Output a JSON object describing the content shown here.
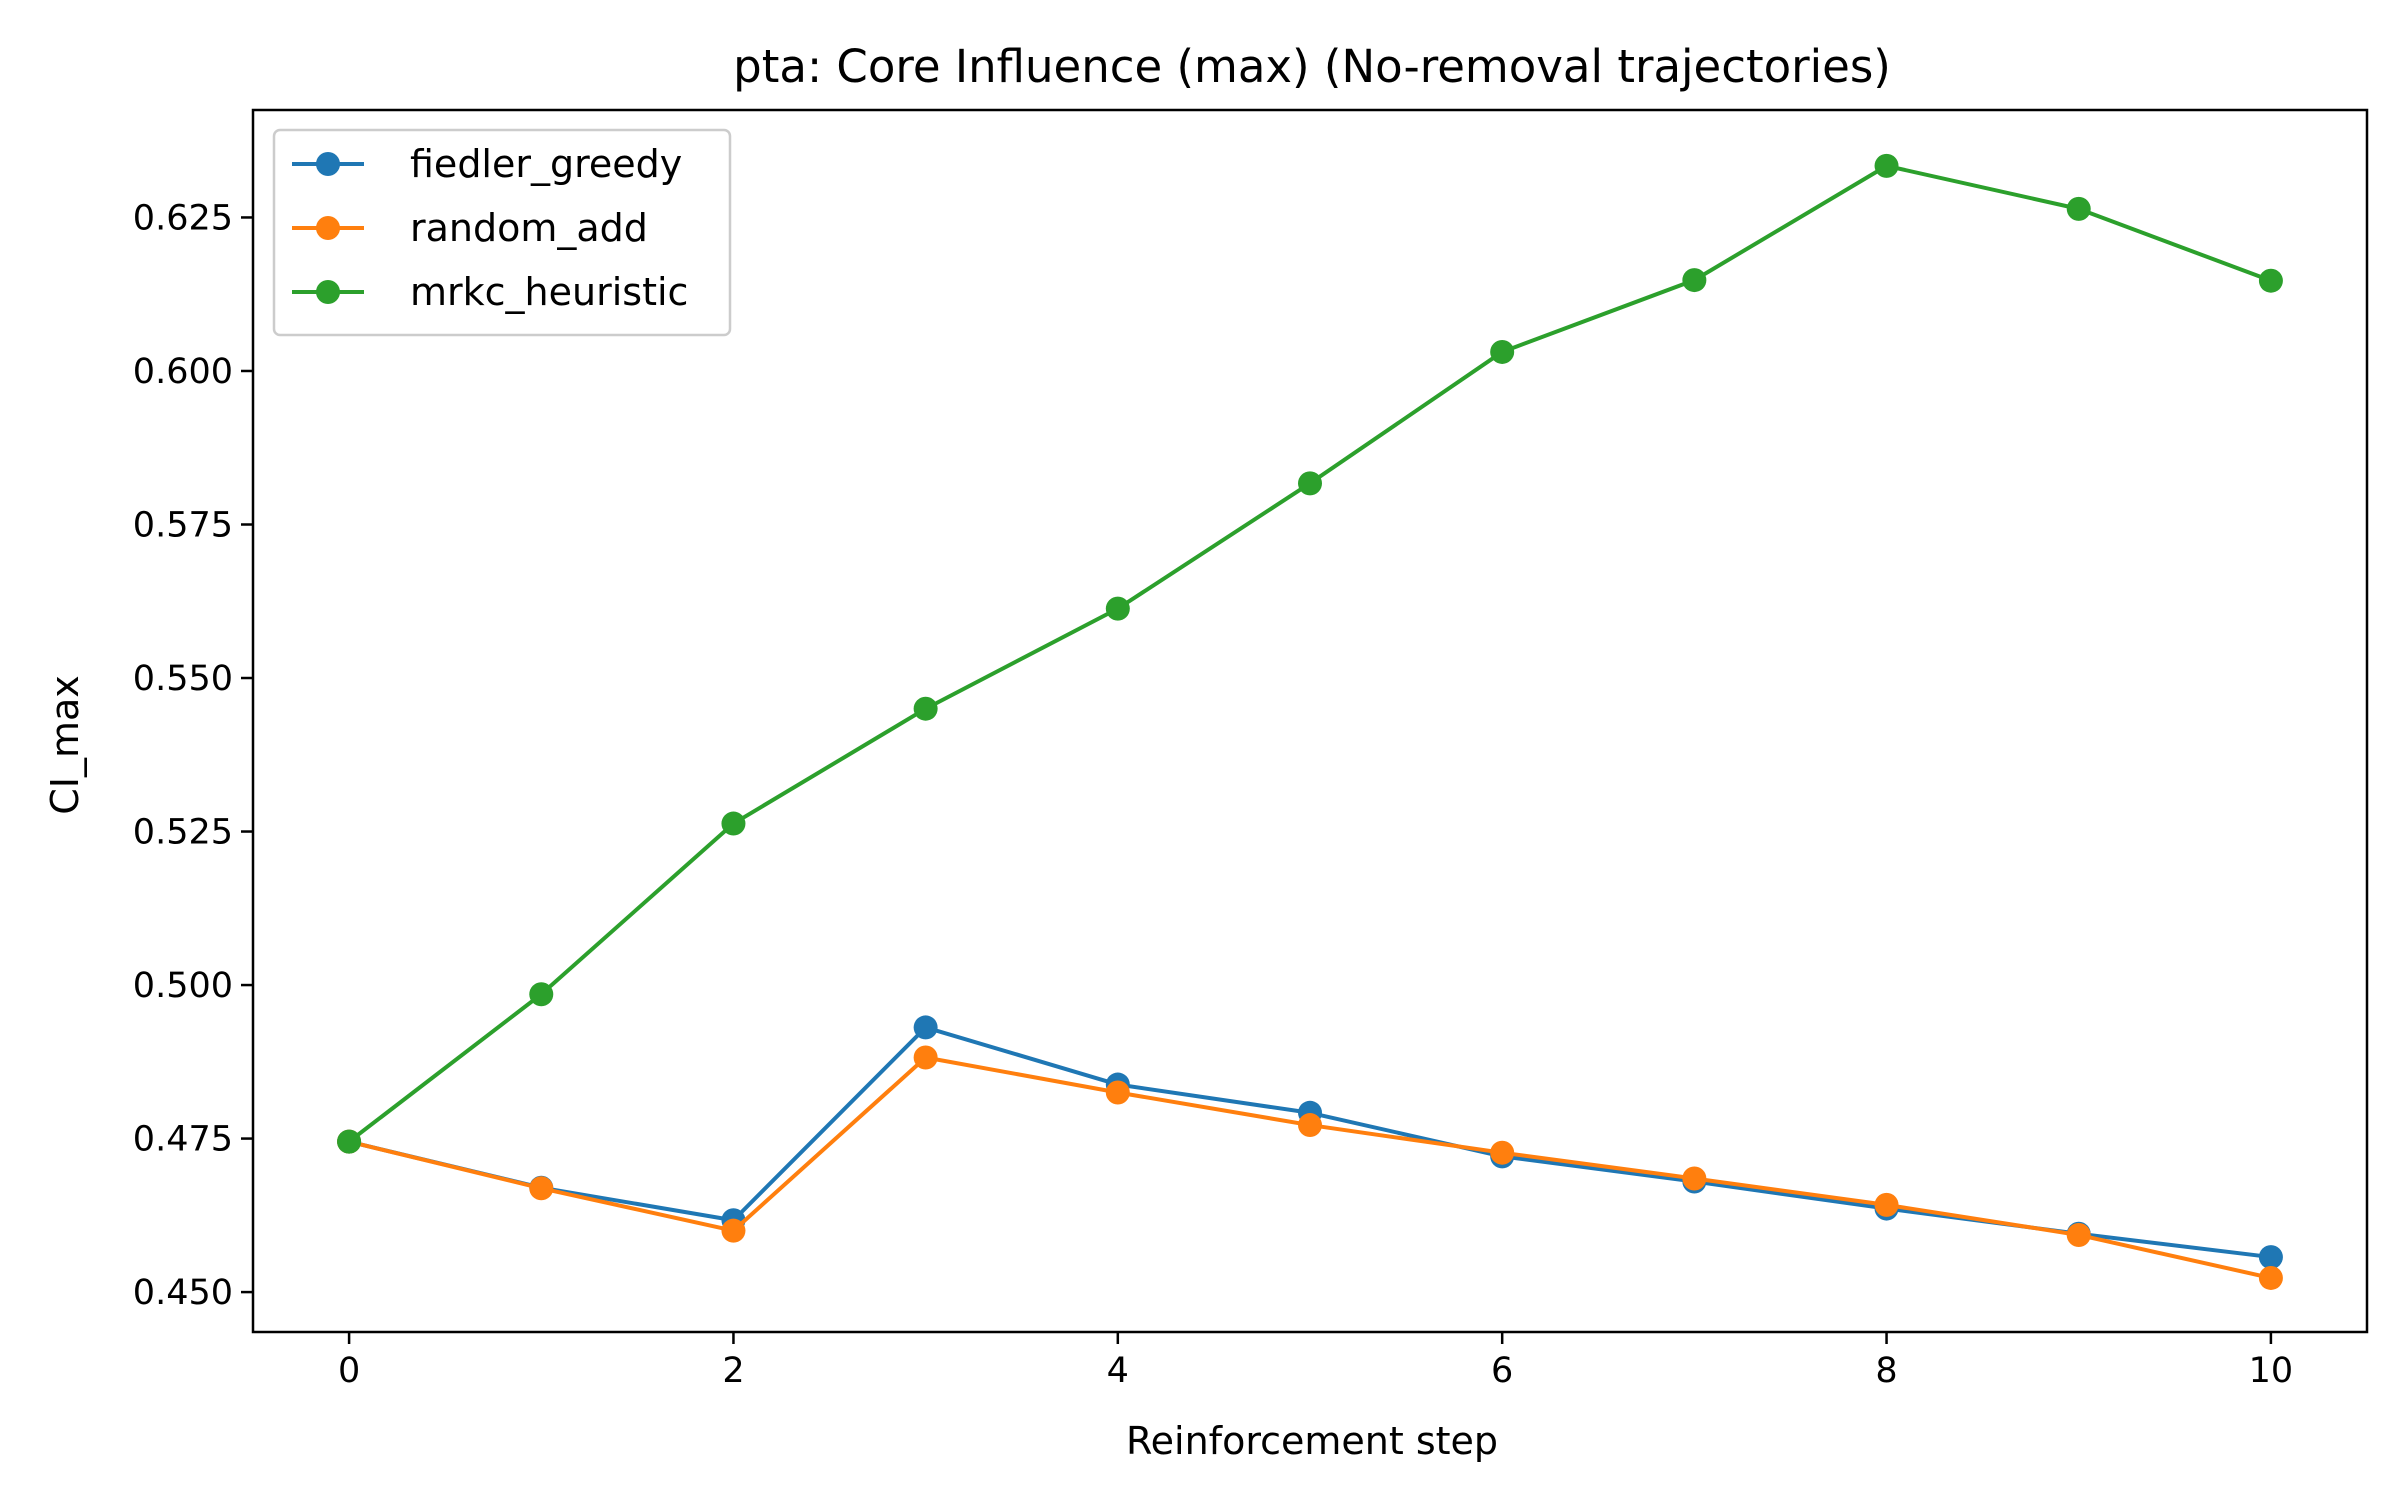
{
  "chart_data": {
    "type": "line",
    "title": "pta: Core Influence (max) (No-removal trajectories)",
    "xlabel": "Reinforcement step",
    "ylabel": "CI_max",
    "x": [
      0,
      1,
      2,
      3,
      4,
      5,
      6,
      7,
      8,
      9,
      10
    ],
    "xlim": [
      -0.5,
      10.5
    ],
    "ylim": [
      0.4435,
      0.6425
    ],
    "xticks": [
      0,
      2,
      4,
      6,
      8,
      10
    ],
    "xtick_labels": [
      "0",
      "2",
      "4",
      "6",
      "8",
      "10"
    ],
    "yticks": [
      0.45,
      0.475,
      0.5,
      0.525,
      0.55,
      0.575,
      0.6,
      0.625
    ],
    "ytick_labels": [
      "0.450",
      "0.475",
      "0.500",
      "0.525",
      "0.550",
      "0.575",
      "0.600",
      "0.625"
    ],
    "grid": false,
    "legend_position": "top-left",
    "series": [
      {
        "name": "fiedler_greedy",
        "color": "#1f77b4",
        "values": [
          0.4745,
          0.467,
          0.4617,
          0.4931,
          0.4838,
          0.4792,
          0.4721,
          0.468,
          0.4636,
          0.4595,
          0.4557
        ]
      },
      {
        "name": "random_add",
        "color": "#ff7f0e",
        "values": [
          0.4745,
          0.4669,
          0.46,
          0.4882,
          0.4825,
          0.4772,
          0.4727,
          0.4685,
          0.4642,
          0.4593,
          0.4523
        ]
      },
      {
        "name": "mrkc_heuristic",
        "color": "#2ca02c",
        "values": [
          0.4745,
          0.4985,
          0.5263,
          0.545,
          0.5613,
          0.5817,
          0.6031,
          0.6148,
          0.6334,
          0.6264,
          0.6147
        ]
      }
    ]
  }
}
